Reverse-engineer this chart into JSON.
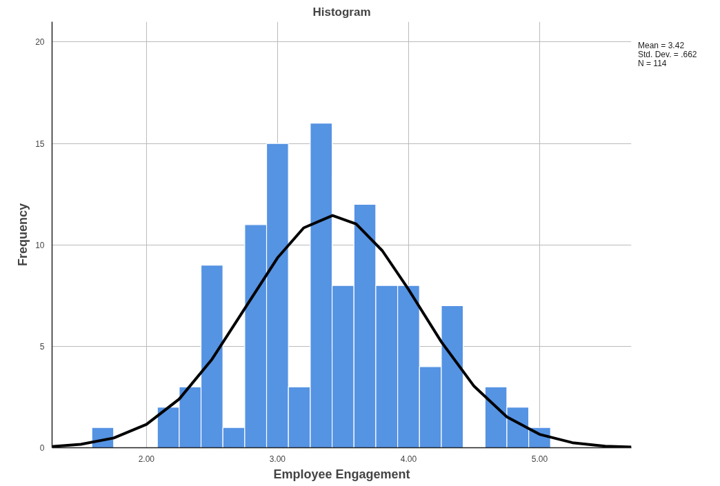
{
  "chart_data": {
    "type": "histogram",
    "title": "Histogram",
    "xlabel": "Employee Engagement",
    "ylabel": "Frequency",
    "bins": [
      1.5833,
      1.75,
      1.9167,
      2.0833,
      2.25,
      2.4167,
      2.5833,
      2.75,
      2.9167,
      3.0833,
      3.25,
      3.4167,
      3.5833,
      3.75,
      3.9167,
      4.0833,
      4.25,
      4.4167,
      4.5833,
      4.75,
      4.9167,
      5.0833
    ],
    "values": [
      1,
      0,
      0,
      2,
      3,
      9,
      1,
      11,
      15,
      3,
      16,
      8,
      12,
      8,
      8,
      4,
      7,
      0,
      3,
      2,
      1
    ],
    "color": "#5593e3",
    "series": [
      {
        "type": "line",
        "color": "#000000",
        "x": [
          1.28,
          1.5,
          1.75,
          2.0,
          2.25,
          2.5,
          2.75,
          3.0,
          3.2,
          3.42,
          3.6,
          3.8,
          4.0,
          4.25,
          4.5,
          4.75,
          5.0,
          5.25,
          5.5,
          5.7
        ],
        "values": [
          0.06,
          0.17,
          0.48,
          1.15,
          2.4,
          4.36,
          6.86,
          9.36,
          10.84,
          11.45,
          11.03,
          9.71,
          7.8,
          5.22,
          3.03,
          1.52,
          0.66,
          0.25,
          0.08,
          0.03
        ]
      }
    ],
    "xlim": [
      1.28,
      5.7
    ],
    "ylim": [
      0,
      21
    ],
    "xticks": [
      {
        "value": 2,
        "label": "2.00"
      },
      {
        "value": 3,
        "label": "3.00"
      },
      {
        "value": 4,
        "label": "4.00"
      },
      {
        "value": 5,
        "label": "5.00"
      }
    ],
    "yticks": [
      0,
      5,
      10,
      15,
      20
    ],
    "grid": true,
    "annotations": [
      "Mean = 3.42",
      "Std. Dev. = .662",
      "N = 114"
    ]
  }
}
